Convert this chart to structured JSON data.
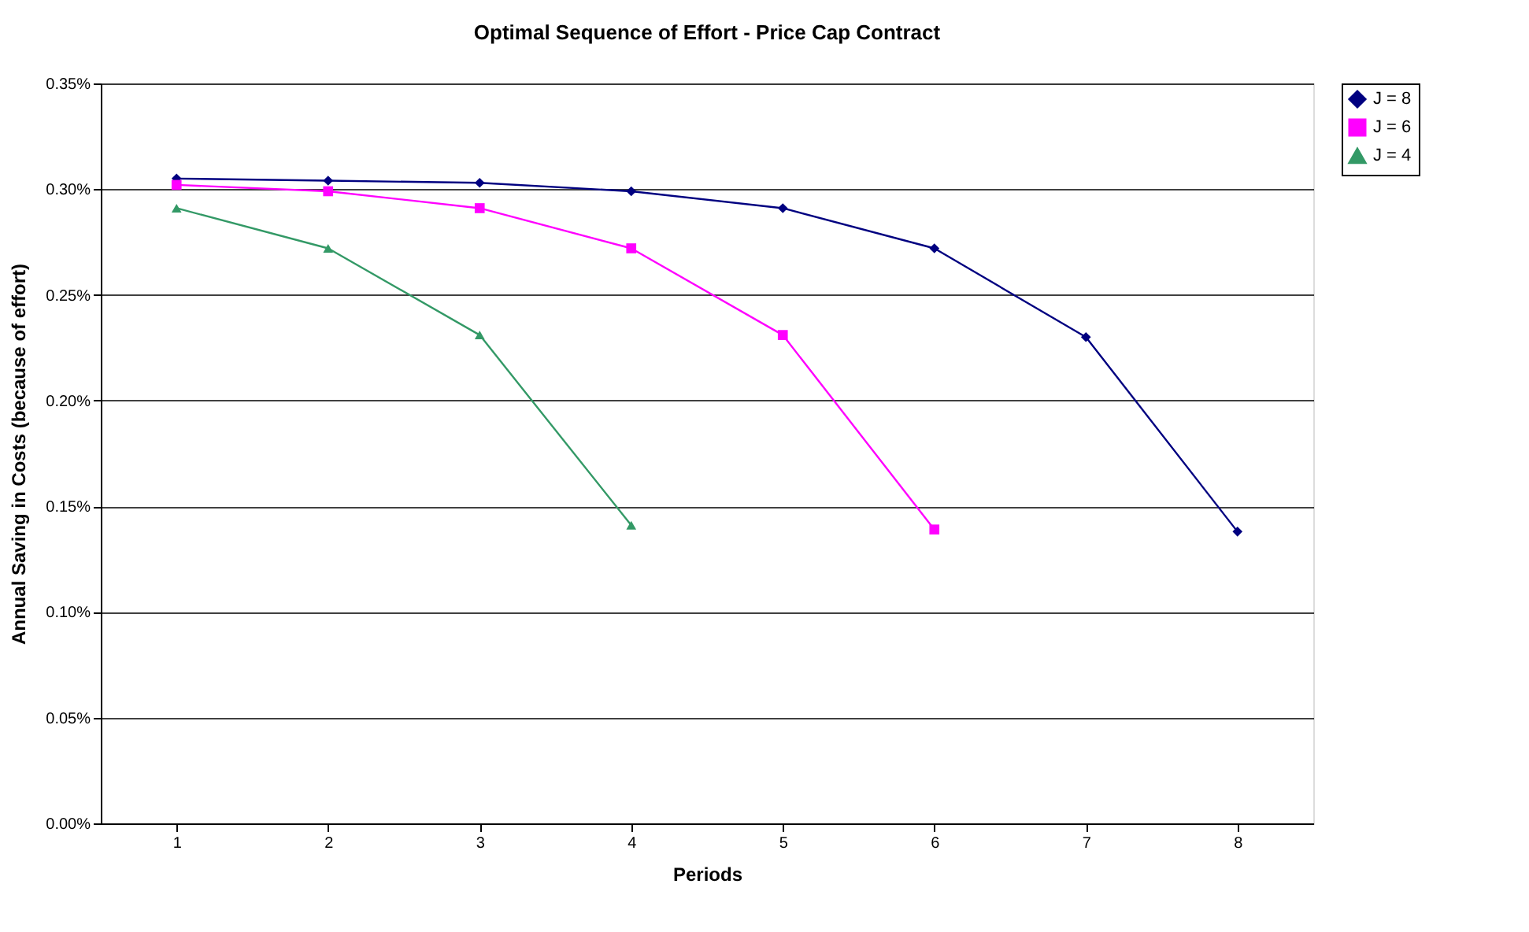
{
  "chart_data": {
    "type": "line",
    "title": "Optimal Sequence of Effort - Price Cap Contract",
    "xlabel": "Periods",
    "ylabel": "Annual Saving in Costs (because of effort)",
    "categories": [
      "1",
      "2",
      "3",
      "4",
      "5",
      "6",
      "7",
      "8"
    ],
    "series": [
      {
        "name": "J = 8",
        "color": "#000080",
        "marker": "diamond",
        "values": [
          0.305,
          0.304,
          0.303,
          0.299,
          0.291,
          0.272,
          0.23,
          0.138
        ]
      },
      {
        "name": "J = 6",
        "color": "#ff00ff",
        "marker": "square",
        "values": [
          0.302,
          0.299,
          0.291,
          0.272,
          0.231,
          0.139,
          null,
          null
        ]
      },
      {
        "name": "J = 4",
        "color": "#339966",
        "marker": "triangle",
        "values": [
          0.291,
          0.272,
          0.231,
          0.141,
          null,
          null,
          null,
          null
        ]
      }
    ],
    "ylim": [
      0,
      0.35
    ],
    "yticks": [
      {
        "value": 0,
        "label": "0.00%"
      },
      {
        "value": 0.05,
        "label": "0.05%"
      },
      {
        "value": 0.1,
        "label": "0.10%"
      },
      {
        "value": 0.15,
        "label": "0.15%"
      },
      {
        "value": 0.2,
        "label": "0.20%"
      },
      {
        "value": 0.25,
        "label": "0.25%"
      },
      {
        "value": 0.3,
        "label": "0.30%"
      },
      {
        "value": 0.35,
        "label": "0.35%"
      }
    ],
    "grid": "y",
    "legend": "right",
    "line_style": "solid"
  }
}
